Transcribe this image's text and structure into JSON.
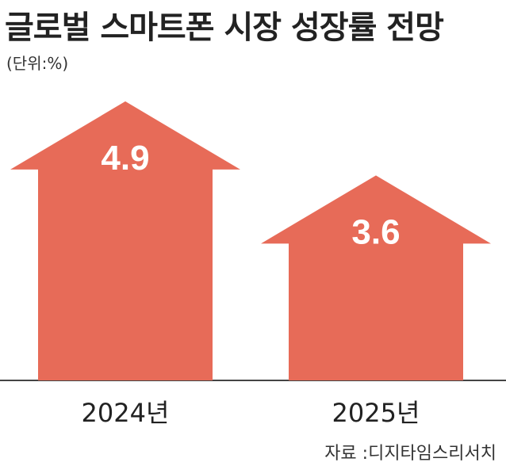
{
  "header": {
    "title": "글로벌 스마트폰 시장 성장률 전망",
    "unit": "(단위:%)"
  },
  "footer": {
    "source": "자료 :디지타임스리서치"
  },
  "colors": {
    "bar": "#e76b58",
    "label": "#ffffff",
    "text": "#222222",
    "axis": "#444444"
  },
  "chart_data": {
    "type": "bar",
    "title": "글로벌 스마트폰 시장 성장률 전망",
    "categories": [
      "2024년",
      "2025년"
    ],
    "values": [
      4.9,
      3.6
    ],
    "ylabel": "(단위:%)",
    "xlabel": "",
    "ylim": [
      0,
      5.4
    ],
    "grid": false,
    "legend": "none",
    "style": "arrow"
  }
}
